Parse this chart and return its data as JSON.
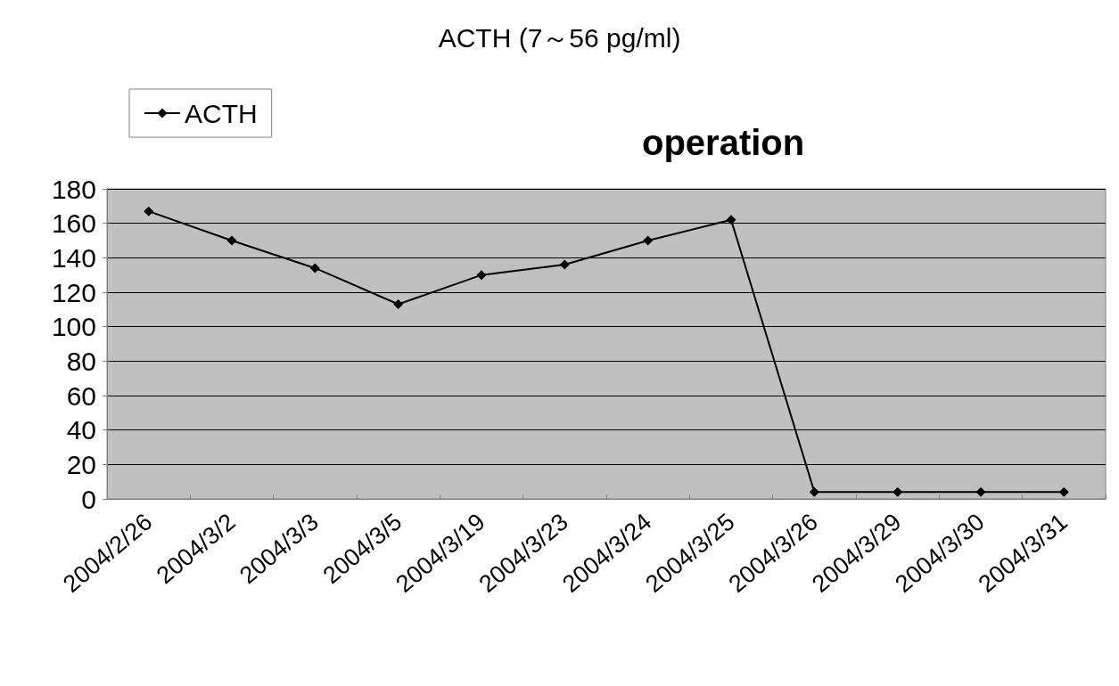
{
  "chart_data": {
    "type": "line",
    "title": "ACTH (7～56 pg/ml)",
    "categories": [
      "2004/2/26",
      "2004/3/2",
      "2004/3/3",
      "2004/3/5",
      "2004/3/19",
      "2004/3/23",
      "2004/3/24",
      "2004/3/25",
      "2004/3/26",
      "2004/3/29",
      "2004/3/30",
      "2004/3/31"
    ],
    "series": [
      {
        "name": "ACTH",
        "color": "#000000",
        "values": [
          167,
          150,
          134,
          113,
          130,
          136,
          150,
          162,
          4,
          4,
          4,
          4
        ]
      }
    ],
    "ylim": [
      0,
      180
    ],
    "yticks": [
      0,
      20,
      40,
      60,
      80,
      100,
      120,
      140,
      160,
      180
    ],
    "grid": "y",
    "legend": "top left",
    "marker": "diamond",
    "line_style": "solid",
    "annotations": [
      "operation"
    ]
  }
}
